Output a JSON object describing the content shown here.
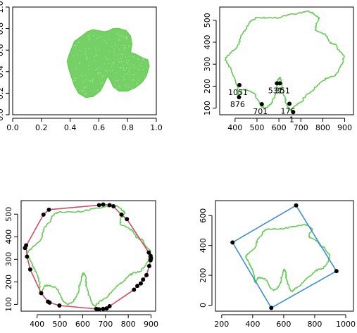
{
  "chart_data": [
    {
      "type": "scatter",
      "panel": "top-left",
      "title": "",
      "xlabel": "",
      "ylabel": "",
      "xlim": [
        0,
        1
      ],
      "ylim": [
        0,
        1
      ],
      "x_ticks": [
        "0.0",
        "0.2",
        "0.4",
        "0.6",
        "0.8",
        "1.0"
      ],
      "y_ticks": [
        "0.0",
        "0.2",
        "0.4",
        "0.6",
        "0.8",
        "1.0"
      ],
      "point_color": "#66cc55",
      "series": [
        {
          "kind": "filled-region",
          "outline": [
            [
              0.4,
              0.58
            ],
            [
              0.43,
              0.68
            ],
            [
              0.48,
              0.73
            ],
            [
              0.52,
              0.77
            ],
            [
              0.56,
              0.79
            ],
            [
              0.6,
              0.78
            ],
            [
              0.64,
              0.77
            ],
            [
              0.67,
              0.78
            ],
            [
              0.7,
              0.8
            ],
            [
              0.74,
              0.8
            ],
            [
              0.79,
              0.78
            ],
            [
              0.82,
              0.73
            ],
            [
              0.83,
              0.66
            ],
            [
              0.82,
              0.58
            ],
            [
              0.86,
              0.56
            ],
            [
              0.9,
              0.53
            ],
            [
              0.94,
              0.51
            ],
            [
              0.95,
              0.45
            ],
            [
              0.93,
              0.36
            ],
            [
              0.9,
              0.3
            ],
            [
              0.85,
              0.25
            ],
            [
              0.8,
              0.22
            ],
            [
              0.74,
              0.22
            ],
            [
              0.7,
              0.26
            ],
            [
              0.68,
              0.32
            ],
            [
              0.66,
              0.36
            ],
            [
              0.64,
              0.3
            ],
            [
              0.61,
              0.22
            ],
            [
              0.56,
              0.17
            ],
            [
              0.51,
              0.16
            ],
            [
              0.46,
              0.2
            ],
            [
              0.43,
              0.27
            ],
            [
              0.41,
              0.35
            ],
            [
              0.39,
              0.43
            ],
            [
              0.38,
              0.5
            ]
          ]
        }
      ]
    },
    {
      "type": "line",
      "panel": "top-right",
      "title": "",
      "xlim": [
        330,
        940
      ],
      "ylim": [
        70,
        560
      ],
      "x_ticks": [
        400,
        500,
        600,
        700,
        800,
        900
      ],
      "y_ticks": [
        100,
        200,
        300,
        400,
        500
      ],
      "line_color": "#66cc55",
      "series": [
        {
          "name": "",
          "points": [
            [
              412,
              200
            ],
            [
              400,
              232
            ],
            [
              385,
              262
            ],
            [
              372,
              292
            ],
            [
              355,
              320
            ],
            [
              365,
              340
            ],
            [
              392,
              362
            ],
            [
              418,
              390
            ],
            [
              425,
              420
            ],
            [
              440,
              450
            ],
            [
              460,
              475
            ],
            [
              475,
              500
            ],
            [
              500,
              512
            ],
            [
              545,
              510
            ],
            [
              600,
              512
            ],
            [
              640,
              525
            ],
            [
              680,
              528
            ],
            [
              725,
              540
            ],
            [
              752,
              535
            ],
            [
              770,
              520
            ],
            [
              785,
              510
            ],
            [
              770,
              485
            ],
            [
              765,
              455
            ],
            [
              800,
              440
            ],
            [
              822,
              425
            ],
            [
              835,
              395
            ],
            [
              860,
              390
            ],
            [
              875,
              360
            ],
            [
              898,
              338
            ],
            [
              890,
              305
            ],
            [
              872,
              268
            ],
            [
              850,
              245
            ],
            [
              820,
              238
            ],
            [
              800,
              225
            ],
            [
              775,
              200
            ],
            [
              745,
              175
            ],
            [
              720,
              150
            ],
            [
              700,
              128
            ],
            [
              670,
              108
            ],
            [
              655,
              90
            ],
            [
              640,
              105
            ],
            [
              628,
              140
            ],
            [
              620,
              170
            ],
            [
              614,
              196
            ],
            [
              612,
              228
            ],
            [
              602,
              240
            ],
            [
              595,
              225
            ],
            [
              589,
              195
            ],
            [
              582,
              158
            ],
            [
              570,
              130
            ],
            [
              555,
              110
            ],
            [
              535,
              98
            ],
            [
              520,
              110
            ],
            [
              505,
              135
            ],
            [
              490,
              165
            ],
            [
              470,
              178
            ],
            [
              450,
              185
            ],
            [
              430,
              180
            ],
            [
              418,
              150
            ],
            [
              412,
              160
            ],
            [
              412,
              200
            ]
          ]
        }
      ],
      "labeled_points": [
        {
          "label": "1051",
          "x": 420,
          "y": 205
        },
        {
          "label": "876",
          "x": 418,
          "y": 150
        },
        {
          "label": "701",
          "x": 522,
          "y": 118
        },
        {
          "label": "531",
          "x": 591,
          "y": 213
        },
        {
          "label": "351",
          "x": 604,
          "y": 213
        },
        {
          "label": "176",
          "x": 648,
          "y": 120
        },
        {
          "label": "1",
          "x": 665,
          "y": 82
        }
      ]
    },
    {
      "type": "line",
      "panel": "bottom-left",
      "title": "",
      "xlim": [
        330,
        920
      ],
      "ylim": [
        70,
        560
      ],
      "x_ticks": [
        400,
        500,
        600,
        700,
        800,
        900
      ],
      "y_ticks": [
        100,
        200,
        300,
        400,
        500
      ],
      "line_color": "#66cc55",
      "hull_color": "#d44a6a",
      "hull_points": [
        [
          347,
          350
        ],
        [
          352,
          362
        ],
        [
          356,
          312
        ],
        [
          370,
          255
        ],
        [
          418,
          150
        ],
        [
          448,
          112
        ],
        [
          455,
          108
        ],
        [
          498,
          95
        ],
        [
          660,
          80
        ],
        [
          672,
          78
        ],
        [
          690,
          80
        ],
        [
          705,
          82
        ],
        [
          718,
          92
        ],
        [
          825,
          165
        ],
        [
          840,
          182
        ],
        [
          855,
          193
        ],
        [
          865,
          210
        ],
        [
          880,
          230
        ],
        [
          892,
          270
        ],
        [
          898,
          296
        ],
        [
          900,
          305
        ],
        [
          898,
          315
        ],
        [
          890,
          330
        ],
        [
          794,
          478
        ],
        [
          770,
          498
        ],
        [
          735,
          535
        ],
        [
          718,
          540
        ],
        [
          690,
          543
        ],
        [
          672,
          540
        ],
        [
          452,
          520
        ],
        [
          428,
          498
        ]
      ],
      "series_ref": "top-right"
    },
    {
      "type": "line",
      "panel": "bottom-right",
      "title": "",
      "xlim": [
        160,
        1050
      ],
      "ylim": [
        -40,
        700
      ],
      "x_ticks": [
        200,
        400,
        600,
        800,
        1000
      ],
      "y_ticks": [
        0,
        200,
        400,
        600
      ],
      "line_color": "#66cc55",
      "box_color": "#3d8fd8",
      "box_corners": [
        [
          270,
          420
        ],
        [
          680,
          668
        ],
        [
          940,
          228
        ],
        [
          520,
          -18
        ]
      ],
      "series_ref": "top-right"
    }
  ]
}
